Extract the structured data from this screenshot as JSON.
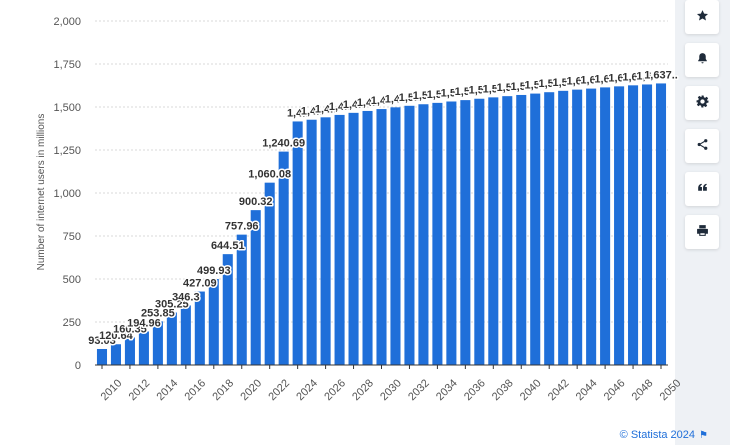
{
  "chart_data": {
    "type": "bar",
    "title": "",
    "xlabel": "",
    "ylabel": "Number of internet users in millions",
    "ylim": [
      0,
      2000
    ],
    "yticks": [
      "0",
      "250",
      "500",
      "750",
      "1,000",
      "1,250",
      "1,500",
      "1,750",
      "2,000"
    ],
    "grid": true,
    "legend": "none",
    "color": "#1f6fd9",
    "categories": [
      "2010",
      "2011",
      "2012",
      "2013",
      "2014",
      "2015",
      "2016",
      "2017",
      "2018",
      "2019",
      "2020",
      "2021",
      "2022",
      "2023",
      "2024",
      "2025",
      "2026",
      "2027",
      "2028",
      "2029",
      "2030",
      "2031",
      "2032",
      "2033",
      "2034",
      "2035",
      "2036",
      "2037",
      "2038",
      "2039",
      "2040",
      "2041",
      "2042",
      "2043",
      "2044",
      "2045",
      "2046",
      "2047",
      "2048",
      "2049",
      "2050"
    ],
    "values": [
      93.03,
      120.64,
      160.35,
      194.96,
      253.85,
      305.25,
      346.3,
      427.09,
      499.93,
      644.51,
      757.96,
      900.32,
      1060.08,
      1240.69,
      1416,
      1426,
      1440,
      1454,
      1466,
      1477,
      1488,
      1498,
      1507,
      1516,
      1524,
      1532,
      1540,
      1548,
      1556,
      1563,
      1570,
      1578,
      1586,
      1594,
      1601,
      1607,
      1614,
      1620,
      1626,
      1631,
      1637
    ],
    "value_labels": [
      "93.03",
      "120.64",
      "160.35",
      "194.96",
      "253.85",
      "305.25",
      "346.3",
      "427.09",
      "499.93",
      "644.51",
      "757.96",
      "900.32",
      "1,060.08",
      "1,240.69",
      "1,4..",
      "1,4..",
      "1,4..",
      "1,4..",
      "1,4..",
      "1,4..",
      "1,4..",
      "1,4..",
      "1,5..",
      "1,5..",
      "1,5..",
      "1,5..",
      "1,5..",
      "1,5..",
      "1,5..",
      "1,5..",
      "1,5..",
      "1,5..",
      "1,5..",
      "1,5..",
      "1,6..",
      "1,6..",
      "1,6..",
      "1,6..",
      "1,6..",
      "1,6..",
      "1,637.."
    ],
    "xtick_labels": [
      "2010",
      "2012",
      "2014",
      "2016",
      "2018",
      "2020",
      "2022",
      "2024",
      "2026",
      "2028",
      "2030",
      "2032",
      "2034",
      "2036",
      "2038",
      "2040",
      "2042",
      "2044",
      "2046",
      "2048",
      "2050"
    ]
  },
  "toolbar": {
    "icons": [
      "star-icon",
      "bell-icon",
      "gear-icon",
      "share-icon",
      "quote-icon",
      "print-icon"
    ]
  },
  "credit": {
    "text": "© Statista 2024"
  }
}
